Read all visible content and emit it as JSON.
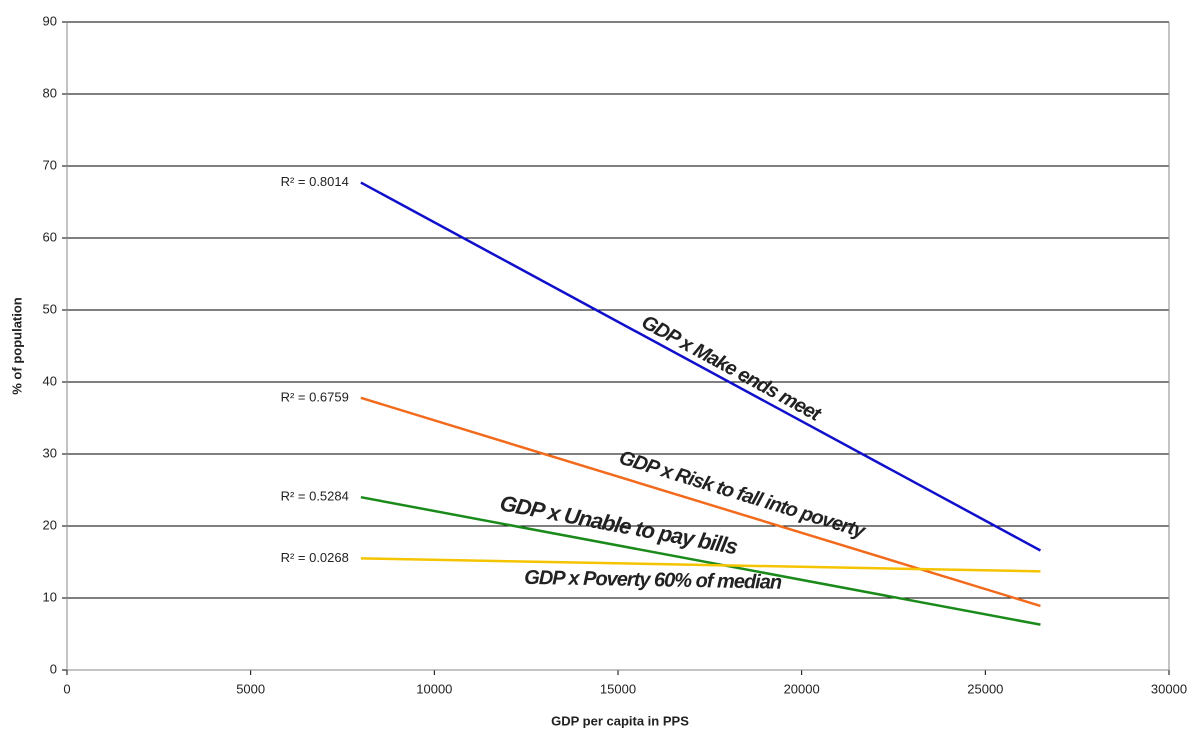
{
  "chart_data": {
    "type": "line",
    "x_label": "GDP per capita in PPS",
    "y_label": "% of population",
    "xlim": [
      0,
      30000
    ],
    "xticks": [
      0,
      5000,
      10000,
      15000,
      20000,
      25000,
      30000
    ],
    "ylim": [
      0,
      90
    ],
    "yticks": [
      0,
      10,
      20,
      30,
      40,
      50,
      60,
      70,
      80,
      90
    ],
    "grid": true,
    "series": [
      {
        "name": "GDP x Make ends meet",
        "color": "#1010cc",
        "x": [
          8000,
          26500
        ],
        "values": [
          67.7,
          16.6
        ],
        "r_squared_label": "R² = 0.8014"
      },
      {
        "name": "GDP x Risk to fall into poverty",
        "color": "#f26b1d",
        "x": [
          8000,
          26500
        ],
        "values": [
          37.8,
          8.9
        ],
        "r_squared_label": "R² = 0.6759"
      },
      {
        "name": "GDP x Unable to pay bills",
        "color": "#1a8a1a",
        "x": [
          8000,
          26500
        ],
        "values": [
          24.0,
          6.3
        ],
        "r_squared_label": "R² = 0.5284"
      },
      {
        "name": "GDP x Poverty 60% of median",
        "color": "#f5c400",
        "x": [
          8000,
          26500
        ],
        "values": [
          15.5,
          13.7
        ],
        "r_squared_label": "R² = 0.0268"
      }
    ]
  }
}
